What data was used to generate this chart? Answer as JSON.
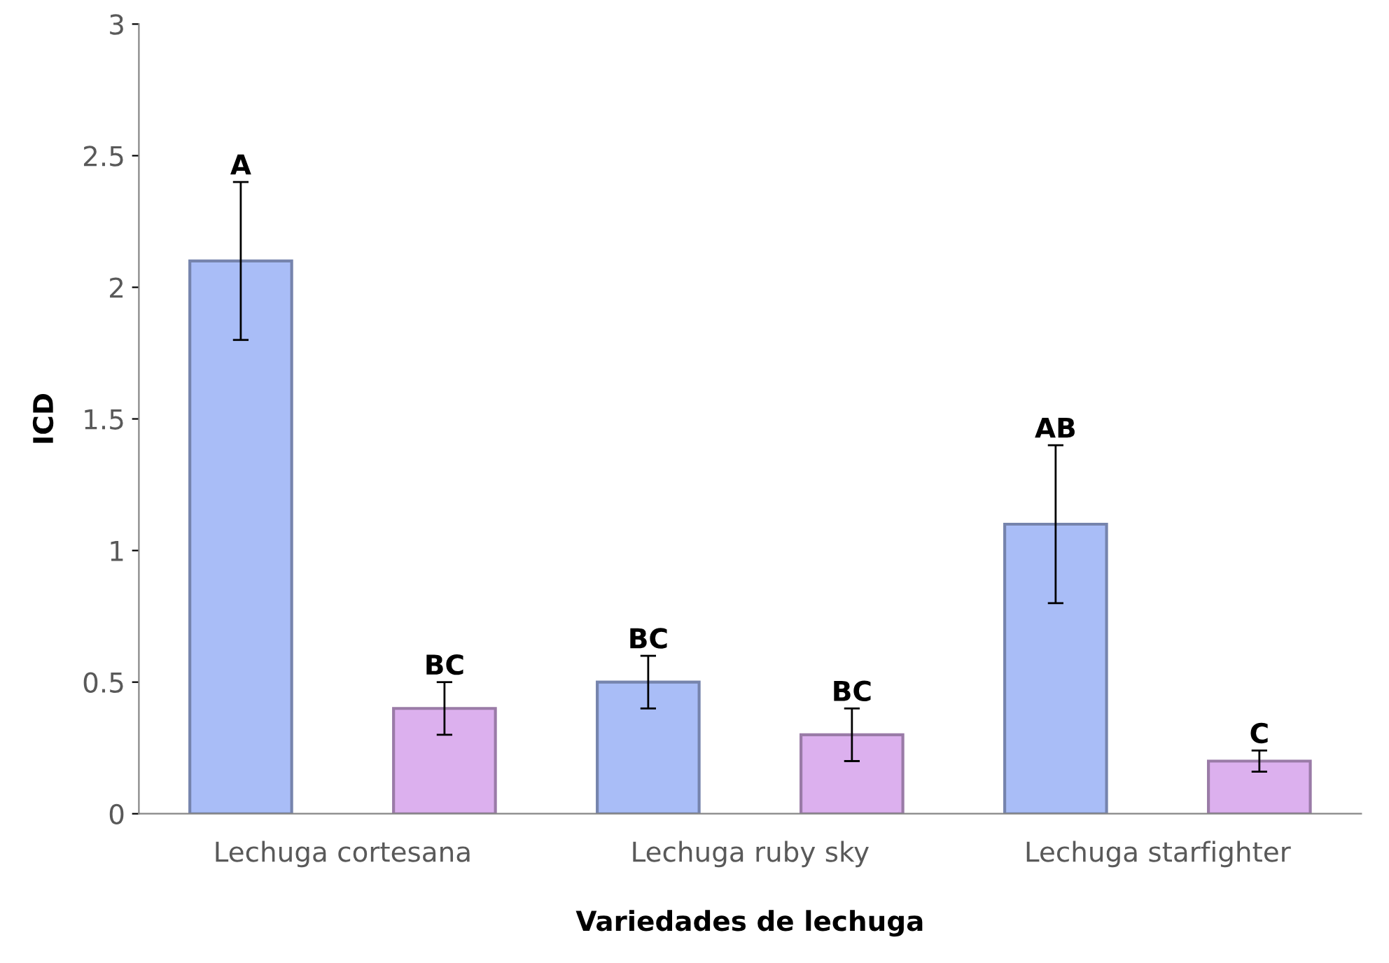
{
  "chart_data": {
    "type": "bar",
    "xlabel": "Variedades de lechuga",
    "ylabel": "ICD",
    "categories": [
      "Lechuga cortesana",
      "Lechuga ruby sky",
      "Lechuga starfighter"
    ],
    "series": [
      {
        "color": "#a9bdf7",
        "values": [
          2.1,
          0.5,
          1.1
        ],
        "errors": [
          0.3,
          0.1,
          0.3
        ],
        "value_labels": [
          "A",
          "BC",
          "AB"
        ]
      },
      {
        "color": "#dcb0ee",
        "values": [
          0.4,
          0.3,
          0.2
        ],
        "errors": [
          0.1,
          0.1,
          0.04
        ],
        "value_labels": [
          "BC",
          "BC",
          "C"
        ]
      }
    ],
    "ylim": [
      0,
      3
    ],
    "yticks": [
      0,
      0.5,
      1,
      1.5,
      2,
      2.5,
      3
    ],
    "grid": false,
    "legend": false
  }
}
